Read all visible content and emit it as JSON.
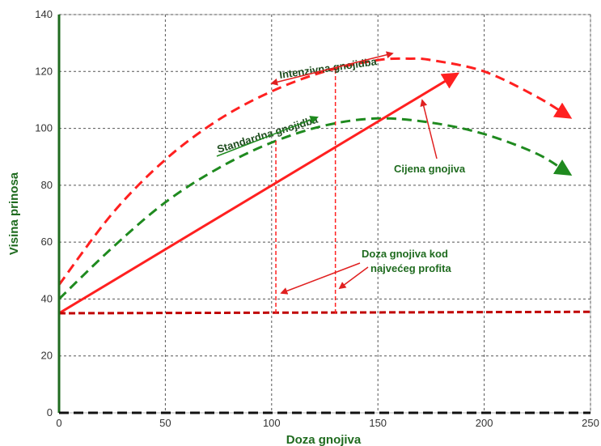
{
  "chart_data": {
    "type": "line",
    "title": "",
    "xlabel": "Doza gnojiva",
    "ylabel": "Visina prinosa",
    "xlim": [
      0,
      250
    ],
    "ylim": [
      0,
      140
    ],
    "xticks": [
      "0",
      "50",
      "100",
      "150",
      "200",
      "250"
    ],
    "yticks": [
      "0",
      "20",
      "40",
      "60",
      "80",
      "100",
      "120",
      "140"
    ],
    "grid": true,
    "series": [
      {
        "key": "intenzivna",
        "style": "dashed-arrow",
        "color": "#ff2020",
        "x": [
          0,
          25,
          50,
          75,
          100,
          125,
          150,
          165,
          175,
          200,
          225,
          240
        ],
        "y": [
          45,
          70,
          89,
          103,
          113,
          120,
          124,
          124.5,
          124,
          120,
          111,
          104
        ]
      },
      {
        "key": "standardna",
        "style": "dashed-arrow",
        "color": "#1f8a1f",
        "x": [
          0,
          25,
          50,
          75,
          100,
          125,
          150,
          175,
          200,
          225,
          240
        ],
        "y": [
          40,
          58,
          74,
          86,
          95,
          101,
          103.5,
          102,
          98,
          91,
          84
        ]
      },
      {
        "key": "cijena",
        "style": "solid-arrow",
        "color": "#ff2020",
        "x": [
          0,
          187
        ],
        "y": [
          35,
          119
        ]
      },
      {
        "key": "baseline",
        "style": "dashed",
        "color": "#c00000",
        "x": [
          0,
          250
        ],
        "y": [
          35,
          35.5
        ]
      }
    ],
    "vlines": [
      {
        "x": 102,
        "y0": 35,
        "y1": 96,
        "color": "#ff2020"
      },
      {
        "x": 130,
        "y0": 35,
        "y1": 121,
        "color": "#ff2020"
      }
    ],
    "annotations": {
      "intenzivna": "Intenzivna gnojidba",
      "standardna": "Standardna gnojidba",
      "cijena": "Cijena gnojiva",
      "doza_line1": "Doza gnojiva kod",
      "doza_line2": "najvećeg profita"
    }
  }
}
